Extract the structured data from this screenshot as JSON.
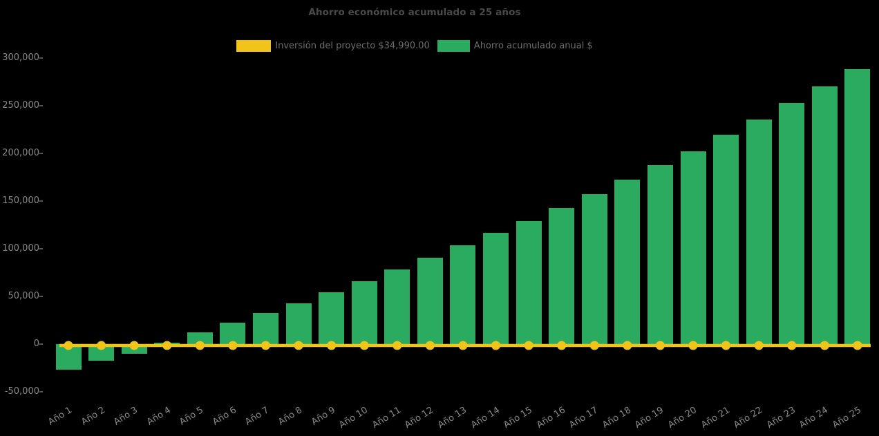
{
  "page": {
    "background": "#000000"
  },
  "chart_data": {
    "type": "bar",
    "title": "Ahorro económico acumulado a 25 años",
    "legend_position": "top",
    "grid": false,
    "categories": [
      "Año 1",
      "Año 2",
      "Año 3",
      "Año 4",
      "Año 5",
      "Año 6",
      "Año 7",
      "Año 8",
      "Año 9",
      "Año 10",
      "Año 11",
      "Año 12",
      "Año 13",
      "Año 14",
      "Año 15",
      "Año 16",
      "Año 17",
      "Año 18",
      "Año 19",
      "Año 20",
      "Año 21",
      "Año 22",
      "Año 23",
      "Año 24",
      "Año 25"
    ],
    "y_axis": {
      "min": -50000,
      "max": 300000,
      "tick_step": 50000,
      "tick_label_format": "thousands-comma"
    },
    "series": [
      {
        "name": "Inversión del proyecto $34,990.00",
        "type": "line",
        "color": "#f0c419",
        "values": [
          0,
          0,
          0,
          0,
          0,
          0,
          0,
          0,
          0,
          0,
          0,
          0,
          0,
          0,
          0,
          0,
          0,
          0,
          0,
          0,
          0,
          0,
          0,
          0,
          0
        ]
      },
      {
        "name": "Ahorro acumulado anual $",
        "type": "bar",
        "color": "#2bab60",
        "values": [
          -26500,
          -17500,
          -10000,
          1500,
          12500,
          22500,
          32500,
          43000,
          54500,
          66000,
          78000,
          90500,
          103500,
          116500,
          129000,
          143000,
          157000,
          172500,
          187500,
          202500,
          219500,
          235500,
          253000,
          270500,
          288500
        ]
      }
    ]
  }
}
